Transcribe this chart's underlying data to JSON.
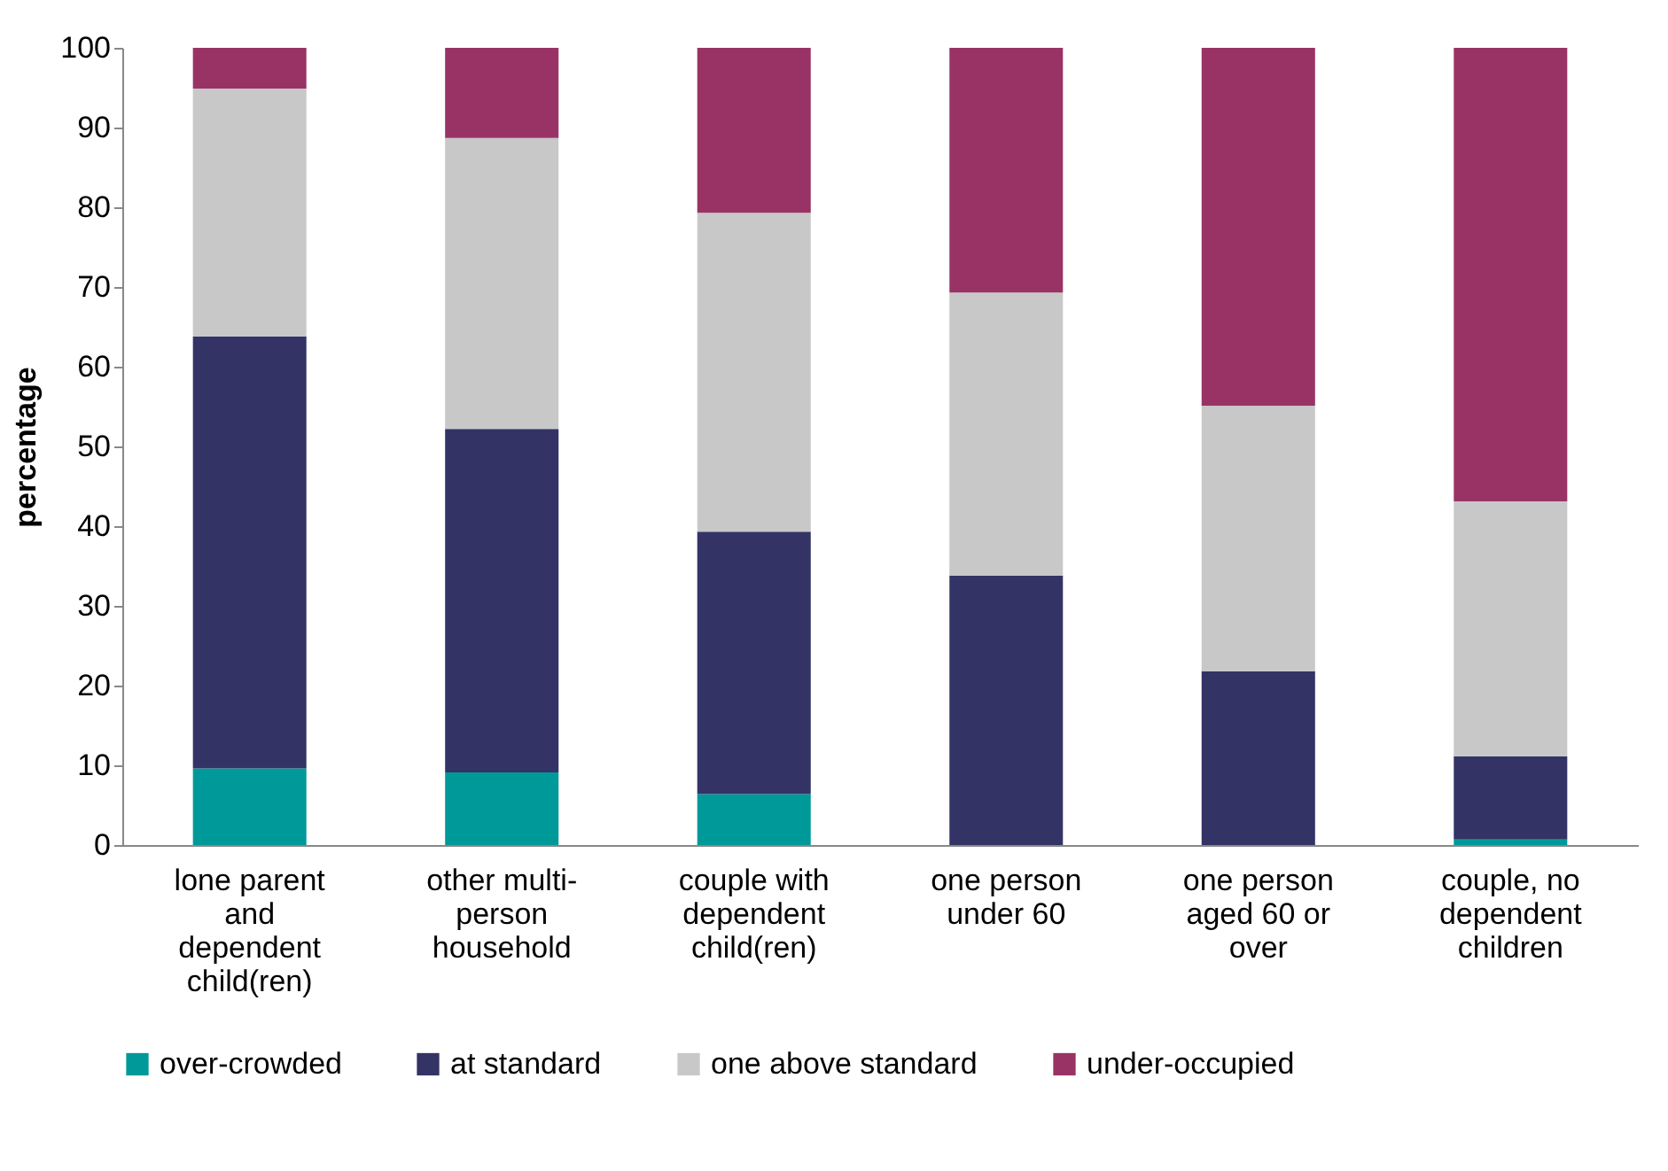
{
  "chart_data": {
    "type": "bar",
    "stacked": true,
    "ylabel": "percentage",
    "categories": [
      "lone parent and dependent child(ren)",
      "other multi-person household",
      "couple with dependent child(ren)",
      "one person under 60",
      "one person aged 60 or over",
      "couple, no dependent children"
    ],
    "series": [
      {
        "name": "over-crowded",
        "color": "#009999",
        "values": [
          9.6,
          9.1,
          6.4,
          0,
          0,
          0.7
        ]
      },
      {
        "name": "at standard",
        "color": "#333366",
        "values": [
          54.2,
          43.1,
          32.9,
          33.8,
          21.8,
          10.4
        ]
      },
      {
        "name": "one above standard",
        "color": "#c8c8c8",
        "values": [
          31.1,
          36.5,
          40.0,
          35.5,
          33.3,
          32.0
        ]
      },
      {
        "name": "under-occupied",
        "color": "#993366",
        "values": [
          5.1,
          11.3,
          20.7,
          30.7,
          44.9,
          56.9
        ]
      }
    ],
    "ylim": [
      0,
      100
    ],
    "yticks": [
      0,
      10,
      20,
      30,
      40,
      50,
      60,
      70,
      80,
      90,
      100
    ],
    "grid": false,
    "legend": "bottom"
  }
}
